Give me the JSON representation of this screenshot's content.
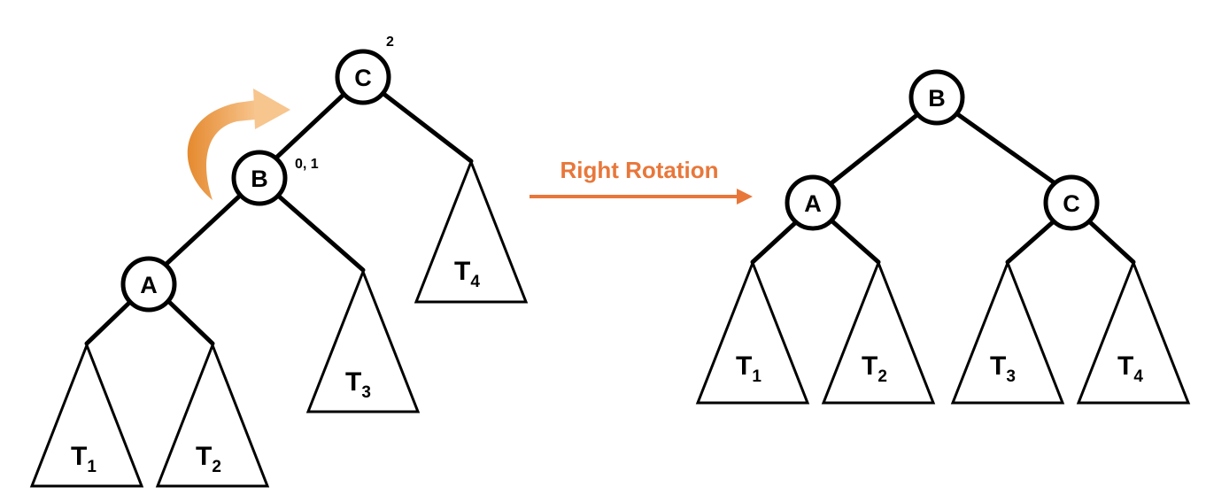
{
  "before": {
    "nodes": {
      "c": {
        "label": "C",
        "annotation": "2"
      },
      "b": {
        "label": "B",
        "annotation": "0, 1"
      },
      "a": {
        "label": "A"
      }
    },
    "subtrees": {
      "t1": {
        "label": "T",
        "sub": "1"
      },
      "t2": {
        "label": "T",
        "sub": "2"
      },
      "t3": {
        "label": "T",
        "sub": "3"
      },
      "t4": {
        "label": "T",
        "sub": "4"
      }
    }
  },
  "transition": {
    "label": "Right Rotation",
    "color": "#e8773a"
  },
  "curved_arrow": {
    "color_light": "#f7c58e",
    "color_dark": "#e58a2f"
  },
  "after": {
    "nodes": {
      "b": {
        "label": "B"
      },
      "a": {
        "label": "A"
      },
      "c": {
        "label": "C"
      }
    },
    "subtrees": {
      "t1": {
        "label": "T",
        "sub": "1"
      },
      "t2": {
        "label": "T",
        "sub": "2"
      },
      "t3": {
        "label": "T",
        "sub": "3"
      },
      "t4": {
        "label": "T",
        "sub": "4"
      }
    }
  }
}
